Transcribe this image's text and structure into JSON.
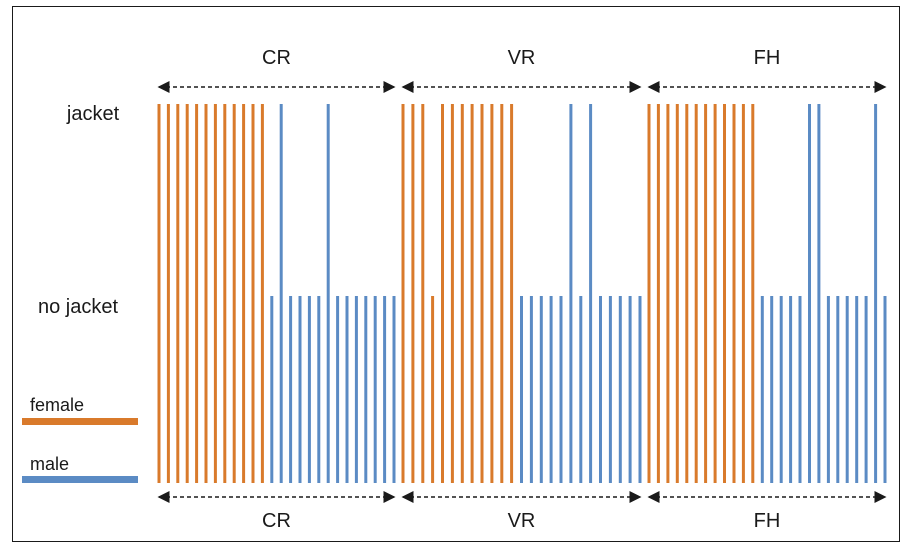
{
  "colors": {
    "female": "#d97a2b",
    "male": "#5b8bc4",
    "text": "#1a1a1a"
  },
  "row_labels": {
    "jacket": "jacket",
    "no_jacket": "no jacket"
  },
  "legend": [
    {
      "label": "female",
      "color": "#d97a2b"
    },
    {
      "label": "male",
      "color": "#5b8bc4"
    }
  ],
  "groups": [
    {
      "top_label": "CR",
      "bottom_label": "CR",
      "participants": [
        {
          "sex": "female",
          "jacket": true
        },
        {
          "sex": "female",
          "jacket": true
        },
        {
          "sex": "female",
          "jacket": true
        },
        {
          "sex": "female",
          "jacket": true
        },
        {
          "sex": "female",
          "jacket": true
        },
        {
          "sex": "female",
          "jacket": true
        },
        {
          "sex": "female",
          "jacket": true
        },
        {
          "sex": "female",
          "jacket": true
        },
        {
          "sex": "female",
          "jacket": true
        },
        {
          "sex": "female",
          "jacket": true
        },
        {
          "sex": "female",
          "jacket": true
        },
        {
          "sex": "female",
          "jacket": true
        },
        {
          "sex": "male",
          "jacket": false
        },
        {
          "sex": "male",
          "jacket": true
        },
        {
          "sex": "male",
          "jacket": false
        },
        {
          "sex": "male",
          "jacket": false
        },
        {
          "sex": "male",
          "jacket": false
        },
        {
          "sex": "male",
          "jacket": false
        },
        {
          "sex": "male",
          "jacket": true
        },
        {
          "sex": "male",
          "jacket": false
        },
        {
          "sex": "male",
          "jacket": false
        },
        {
          "sex": "male",
          "jacket": false
        },
        {
          "sex": "male",
          "jacket": false
        },
        {
          "sex": "male",
          "jacket": false
        },
        {
          "sex": "male",
          "jacket": false
        },
        {
          "sex": "male",
          "jacket": false
        }
      ]
    },
    {
      "top_label": "VR",
      "bottom_label": "VR",
      "participants": [
        {
          "sex": "female",
          "jacket": true
        },
        {
          "sex": "female",
          "jacket": true
        },
        {
          "sex": "female",
          "jacket": true
        },
        {
          "sex": "female",
          "jacket": false
        },
        {
          "sex": "female",
          "jacket": true
        },
        {
          "sex": "female",
          "jacket": true
        },
        {
          "sex": "female",
          "jacket": true
        },
        {
          "sex": "female",
          "jacket": true
        },
        {
          "sex": "female",
          "jacket": true
        },
        {
          "sex": "female",
          "jacket": true
        },
        {
          "sex": "female",
          "jacket": true
        },
        {
          "sex": "female",
          "jacket": true
        },
        {
          "sex": "male",
          "jacket": false
        },
        {
          "sex": "male",
          "jacket": false
        },
        {
          "sex": "male",
          "jacket": false
        },
        {
          "sex": "male",
          "jacket": false
        },
        {
          "sex": "male",
          "jacket": false
        },
        {
          "sex": "male",
          "jacket": true
        },
        {
          "sex": "male",
          "jacket": false
        },
        {
          "sex": "male",
          "jacket": true
        },
        {
          "sex": "male",
          "jacket": false
        },
        {
          "sex": "male",
          "jacket": false
        },
        {
          "sex": "male",
          "jacket": false
        },
        {
          "sex": "male",
          "jacket": false
        },
        {
          "sex": "male",
          "jacket": false
        }
      ]
    },
    {
      "top_label": "FH",
      "bottom_label": "FH",
      "participants": [
        {
          "sex": "female",
          "jacket": true
        },
        {
          "sex": "female",
          "jacket": true
        },
        {
          "sex": "female",
          "jacket": true
        },
        {
          "sex": "female",
          "jacket": true
        },
        {
          "sex": "female",
          "jacket": true
        },
        {
          "sex": "female",
          "jacket": true
        },
        {
          "sex": "female",
          "jacket": true
        },
        {
          "sex": "female",
          "jacket": true
        },
        {
          "sex": "female",
          "jacket": true
        },
        {
          "sex": "female",
          "jacket": true
        },
        {
          "sex": "female",
          "jacket": true
        },
        {
          "sex": "female",
          "jacket": true
        },
        {
          "sex": "male",
          "jacket": false
        },
        {
          "sex": "male",
          "jacket": false
        },
        {
          "sex": "male",
          "jacket": false
        },
        {
          "sex": "male",
          "jacket": false
        },
        {
          "sex": "male",
          "jacket": false
        },
        {
          "sex": "male",
          "jacket": true
        },
        {
          "sex": "male",
          "jacket": true
        },
        {
          "sex": "male",
          "jacket": false
        },
        {
          "sex": "male",
          "jacket": false
        },
        {
          "sex": "male",
          "jacket": false
        },
        {
          "sex": "male",
          "jacket": false
        },
        {
          "sex": "male",
          "jacket": false
        },
        {
          "sex": "male",
          "jacket": true
        },
        {
          "sex": "male",
          "jacket": false
        }
      ]
    }
  ]
}
